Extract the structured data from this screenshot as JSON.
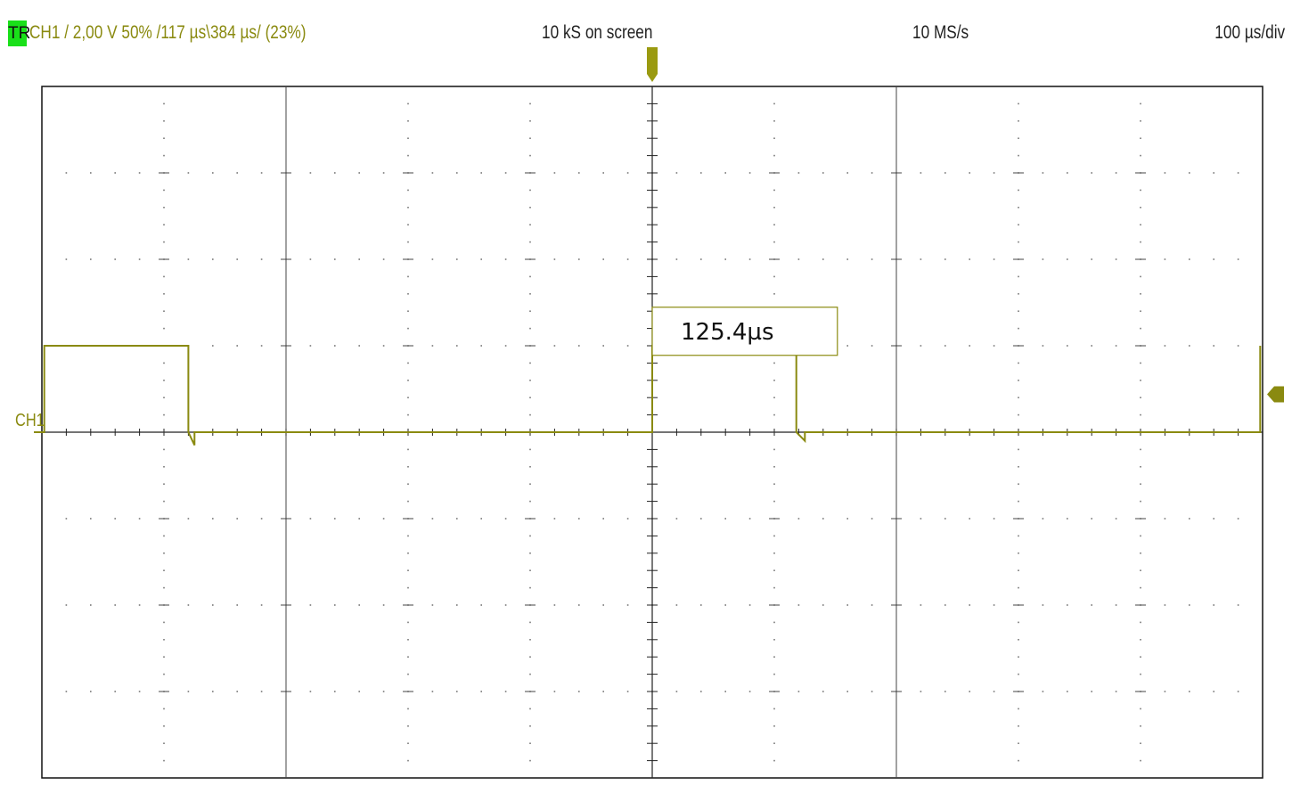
{
  "header": {
    "trigger_badge": "TR",
    "channel_info": "CH1  /  2,00 V  50%  /117 µs\\384 µs/ (23%)",
    "samples": "10 kS on screen",
    "sample_rate": "10 MS/s",
    "timebase": "100 µs/div"
  },
  "colors": {
    "trace": "#8a8a10",
    "grid": "#444444",
    "badge": "#19e019"
  },
  "chart_data": {
    "type": "line",
    "title": "",
    "xlabel": "",
    "ylabel": "",
    "grid": true,
    "divisions": {
      "x": 10,
      "y": 8
    },
    "xlim": [
      -500,
      500
    ],
    "ylim": [
      -8,
      8
    ],
    "x_unit": "µs",
    "y_unit": "V",
    "series": [
      {
        "name": "CH1",
        "x": [
          -500,
          -498,
          -498,
          -380,
          -380,
          -375,
          -375,
          0,
          0,
          118,
          118,
          125,
          125,
          498,
          498
        ],
        "y": [
          0,
          0,
          2,
          2,
          0,
          -0.3,
          0,
          0,
          2,
          2,
          0,
          -0.2,
          0,
          0,
          2
        ]
      }
    ],
    "ground_marker": {
      "label": "CH1",
      "y": 0
    },
    "trigger": {
      "x": 0,
      "level_y": 1
    },
    "annotations": [
      {
        "text": "125.4µs",
        "x_start": 0,
        "x_end": 125.4,
        "y": 2.5
      }
    ]
  }
}
